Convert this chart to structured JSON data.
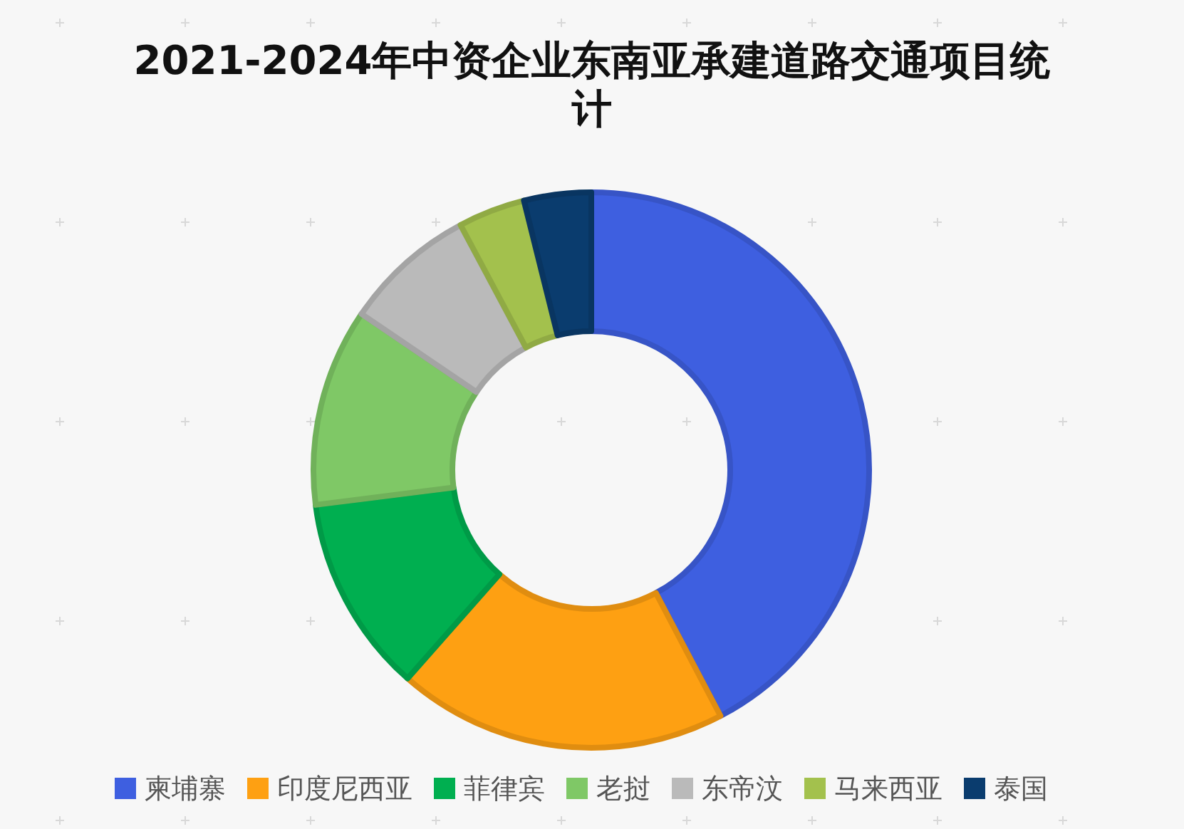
{
  "chart_data": {
    "type": "donut",
    "title": "2021-2024年中资企业东南亚承建道路交通项目统计",
    "categories": [
      "柬埔寨",
      "印度尼西亚",
      "菲律宾",
      "老挝",
      "东帝汶",
      "马来西亚",
      "泰国"
    ],
    "values": [
      42.3,
      19.2,
      11.5,
      11.5,
      7.7,
      3.9,
      3.9
    ],
    "colors": [
      "#3e5fe0",
      "#fea012",
      "#00af50",
      "#7fc866",
      "#bababa",
      "#a3c14d",
      "#0a3c6e"
    ],
    "legend": "bottom"
  }
}
